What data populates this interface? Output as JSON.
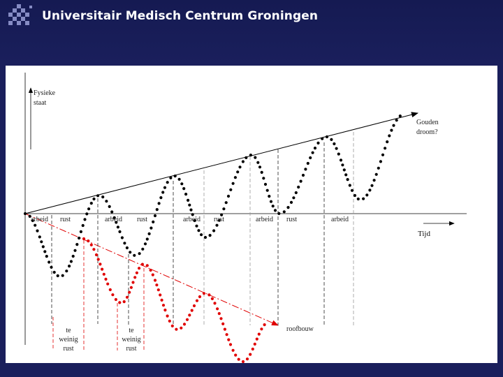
{
  "header": {
    "org_name": "Universitair Medisch Centrum Groningen",
    "logo_icon": "umcg-logo-icon"
  },
  "diagram": {
    "y_axis_label_line1": "Fysieke",
    "y_axis_label_line2": "staat",
    "x_axis_label": "Tijd",
    "upper_arrow_label_line1": "Gouden",
    "upper_arrow_label_line2": "droom?",
    "lower_arrow_label": "roofbouw",
    "phase_labels": [
      "arbeid",
      "rust",
      "arbeid",
      "rust",
      "arbeid",
      "rust",
      "arbeid",
      "rust",
      "arbeid"
    ],
    "insufficient_rest_label": [
      "te",
      "weinig",
      "rust"
    ],
    "colors": {
      "upper_curve": "#000000",
      "lower_curve": "#e00000",
      "lower_arrow": "#e00000",
      "dashed_black": "#222222",
      "dashed_red": "#e00000"
    }
  }
}
